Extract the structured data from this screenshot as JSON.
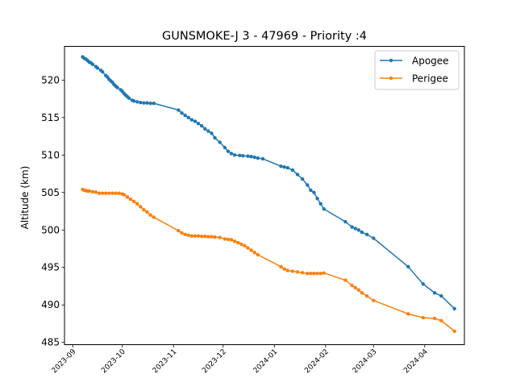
{
  "chart_data": {
    "type": "line",
    "title": "GUNSMOKE-J 3 - 47969 - Priority :4",
    "xlabel": "",
    "ylabel": "Altitude (km)",
    "ylim": [
      484.7,
      524.5
    ],
    "x_range": [
      "2023-08-27",
      "2024-04-25"
    ],
    "x_ticks": [
      "2023-09",
      "2023-10",
      "2023-11",
      "2023-12",
      "2024-01",
      "2024-02",
      "2024-03",
      "2024-04"
    ],
    "y_ticks": [
      485,
      490,
      495,
      500,
      505,
      510,
      515,
      520
    ],
    "grid": false,
    "legend_position": "top-right",
    "series": [
      {
        "name": "Apogee",
        "color": "#1f77b4",
        "points": [
          [
            "2023-09-07",
            523.1
          ],
          [
            "2023-09-08",
            522.9
          ],
          [
            "2023-09-09",
            522.8
          ],
          [
            "2023-09-10",
            522.6
          ],
          [
            "2023-09-11",
            522.4
          ],
          [
            "2023-09-12",
            522.3
          ],
          [
            "2023-09-13",
            522.1
          ],
          [
            "2023-09-15",
            521.8
          ],
          [
            "2023-09-16",
            521.6
          ],
          [
            "2023-09-18",
            521.3
          ],
          [
            "2023-09-19",
            521.1
          ],
          [
            "2023-09-21",
            520.6
          ],
          [
            "2023-09-22",
            520.4
          ],
          [
            "2023-09-23",
            520.1
          ],
          [
            "2023-09-24",
            519.9
          ],
          [
            "2023-09-25",
            519.7
          ],
          [
            "2023-09-26",
            519.4
          ],
          [
            "2023-09-27",
            519.2
          ],
          [
            "2023-09-28",
            519.0
          ],
          [
            "2023-09-30",
            518.7
          ],
          [
            "2023-10-01",
            518.5
          ],
          [
            "2023-10-02",
            518.2
          ],
          [
            "2023-10-03",
            518.0
          ],
          [
            "2023-10-04",
            517.8
          ],
          [
            "2023-10-05",
            517.6
          ],
          [
            "2023-10-07",
            517.3
          ],
          [
            "2023-10-08",
            517.2
          ],
          [
            "2023-10-10",
            517.1
          ],
          [
            "2023-10-12",
            517.0
          ],
          [
            "2023-10-14",
            516.95
          ],
          [
            "2023-10-16",
            516.95
          ],
          [
            "2023-10-18",
            516.9
          ],
          [
            "2023-10-20",
            516.9
          ],
          [
            "2023-11-04",
            516.0
          ],
          [
            "2023-11-06",
            515.6
          ],
          [
            "2023-11-08",
            515.3
          ],
          [
            "2023-11-10",
            515.0
          ],
          [
            "2023-11-12",
            514.7
          ],
          [
            "2023-11-14",
            514.5
          ],
          [
            "2023-11-16",
            514.2
          ],
          [
            "2023-11-18",
            513.9
          ],
          [
            "2023-11-20",
            513.5
          ],
          [
            "2023-11-22",
            513.2
          ],
          [
            "2023-11-24",
            512.9
          ],
          [
            "2023-11-26",
            512.3
          ],
          [
            "2023-11-29",
            511.7
          ],
          [
            "2023-12-02",
            511.0
          ],
          [
            "2023-12-04",
            510.5
          ],
          [
            "2023-12-06",
            510.2
          ],
          [
            "2023-12-08",
            510.0
          ],
          [
            "2023-12-11",
            509.95
          ],
          [
            "2023-12-13",
            509.9
          ],
          [
            "2023-12-16",
            509.85
          ],
          [
            "2023-12-18",
            509.8
          ],
          [
            "2023-12-20",
            509.7
          ],
          [
            "2023-12-22",
            509.6
          ],
          [
            "2023-12-25",
            509.5
          ],
          [
            "2024-01-05",
            508.5
          ],
          [
            "2024-01-07",
            508.4
          ],
          [
            "2024-01-09",
            508.3
          ],
          [
            "2024-01-12",
            508.0
          ],
          [
            "2024-01-15",
            507.4
          ],
          [
            "2024-01-18",
            506.8
          ],
          [
            "2024-01-21",
            506.0
          ],
          [
            "2024-01-23",
            505.3
          ],
          [
            "2024-01-25",
            505.0
          ],
          [
            "2024-01-27",
            504.2
          ],
          [
            "2024-01-29",
            503.5
          ],
          [
            "2024-01-31",
            502.8
          ],
          [
            "2024-02-13",
            501.1
          ],
          [
            "2024-02-17",
            500.4
          ],
          [
            "2024-02-19",
            500.2
          ],
          [
            "2024-02-21",
            500.0
          ],
          [
            "2024-02-23",
            499.7
          ],
          [
            "2024-02-26",
            499.4
          ],
          [
            "2024-03-01",
            498.9
          ],
          [
            "2024-03-22",
            495.1
          ],
          [
            "2024-03-31",
            492.8
          ],
          [
            "2024-04-07",
            491.6
          ],
          [
            "2024-04-11",
            491.2
          ],
          [
            "2024-04-19",
            489.5
          ]
        ]
      },
      {
        "name": "Perigee",
        "color": "#ff7f0e",
        "points": [
          [
            "2023-09-07",
            505.4
          ],
          [
            "2023-09-08",
            505.3
          ],
          [
            "2023-09-09",
            505.25
          ],
          [
            "2023-09-10",
            505.2
          ],
          [
            "2023-09-11",
            505.2
          ],
          [
            "2023-09-13",
            505.1
          ],
          [
            "2023-09-15",
            505.05
          ],
          [
            "2023-09-17",
            504.9
          ],
          [
            "2023-09-19",
            504.9
          ],
          [
            "2023-09-21",
            504.9
          ],
          [
            "2023-09-23",
            504.9
          ],
          [
            "2023-09-25",
            504.9
          ],
          [
            "2023-09-27",
            504.9
          ],
          [
            "2023-09-29",
            504.9
          ],
          [
            "2023-10-01",
            504.8
          ],
          [
            "2023-10-02",
            504.7
          ],
          [
            "2023-10-04",
            504.4
          ],
          [
            "2023-10-06",
            504.1
          ],
          [
            "2023-10-08",
            503.8
          ],
          [
            "2023-10-10",
            503.5
          ],
          [
            "2023-10-12",
            503.1
          ],
          [
            "2023-10-14",
            502.7
          ],
          [
            "2023-10-16",
            502.4
          ],
          [
            "2023-10-18",
            502.0
          ],
          [
            "2023-10-20",
            501.7
          ],
          [
            "2023-11-04",
            499.9
          ],
          [
            "2023-11-06",
            499.6
          ],
          [
            "2023-11-08",
            499.4
          ],
          [
            "2023-11-10",
            499.3
          ],
          [
            "2023-11-12",
            499.2
          ],
          [
            "2023-11-14",
            499.2
          ],
          [
            "2023-11-16",
            499.2
          ],
          [
            "2023-11-18",
            499.15
          ],
          [
            "2023-11-20",
            499.15
          ],
          [
            "2023-11-22",
            499.1
          ],
          [
            "2023-11-24",
            499.1
          ],
          [
            "2023-11-26",
            499.05
          ],
          [
            "2023-11-29",
            499.0
          ],
          [
            "2023-12-02",
            498.8
          ],
          [
            "2023-12-04",
            498.75
          ],
          [
            "2023-12-06",
            498.7
          ],
          [
            "2023-12-08",
            498.5
          ],
          [
            "2023-12-10",
            498.3
          ],
          [
            "2023-12-12",
            498.1
          ],
          [
            "2023-12-14",
            497.9
          ],
          [
            "2023-12-16",
            497.6
          ],
          [
            "2023-12-18",
            497.3
          ],
          [
            "2023-12-20",
            497.0
          ],
          [
            "2023-12-22",
            496.7
          ],
          [
            "2024-01-05",
            495.1
          ],
          [
            "2024-01-07",
            494.8
          ],
          [
            "2024-01-09",
            494.6
          ],
          [
            "2024-01-12",
            494.5
          ],
          [
            "2024-01-15",
            494.4
          ],
          [
            "2024-01-18",
            494.3
          ],
          [
            "2024-01-21",
            494.2
          ],
          [
            "2024-01-23",
            494.2
          ],
          [
            "2024-01-25",
            494.2
          ],
          [
            "2024-01-27",
            494.2
          ],
          [
            "2024-01-29",
            494.2
          ],
          [
            "2024-01-31",
            494.25
          ],
          [
            "2024-02-13",
            493.3
          ],
          [
            "2024-02-17",
            492.6
          ],
          [
            "2024-02-19",
            492.3
          ],
          [
            "2024-02-21",
            492.0
          ],
          [
            "2024-02-23",
            491.6
          ],
          [
            "2024-02-26",
            491.2
          ],
          [
            "2024-03-01",
            490.6
          ],
          [
            "2024-03-22",
            488.8
          ],
          [
            "2024-03-31",
            488.3
          ],
          [
            "2024-04-07",
            488.2
          ],
          [
            "2024-04-11",
            487.9
          ],
          [
            "2024-04-19",
            486.5
          ]
        ]
      }
    ]
  }
}
